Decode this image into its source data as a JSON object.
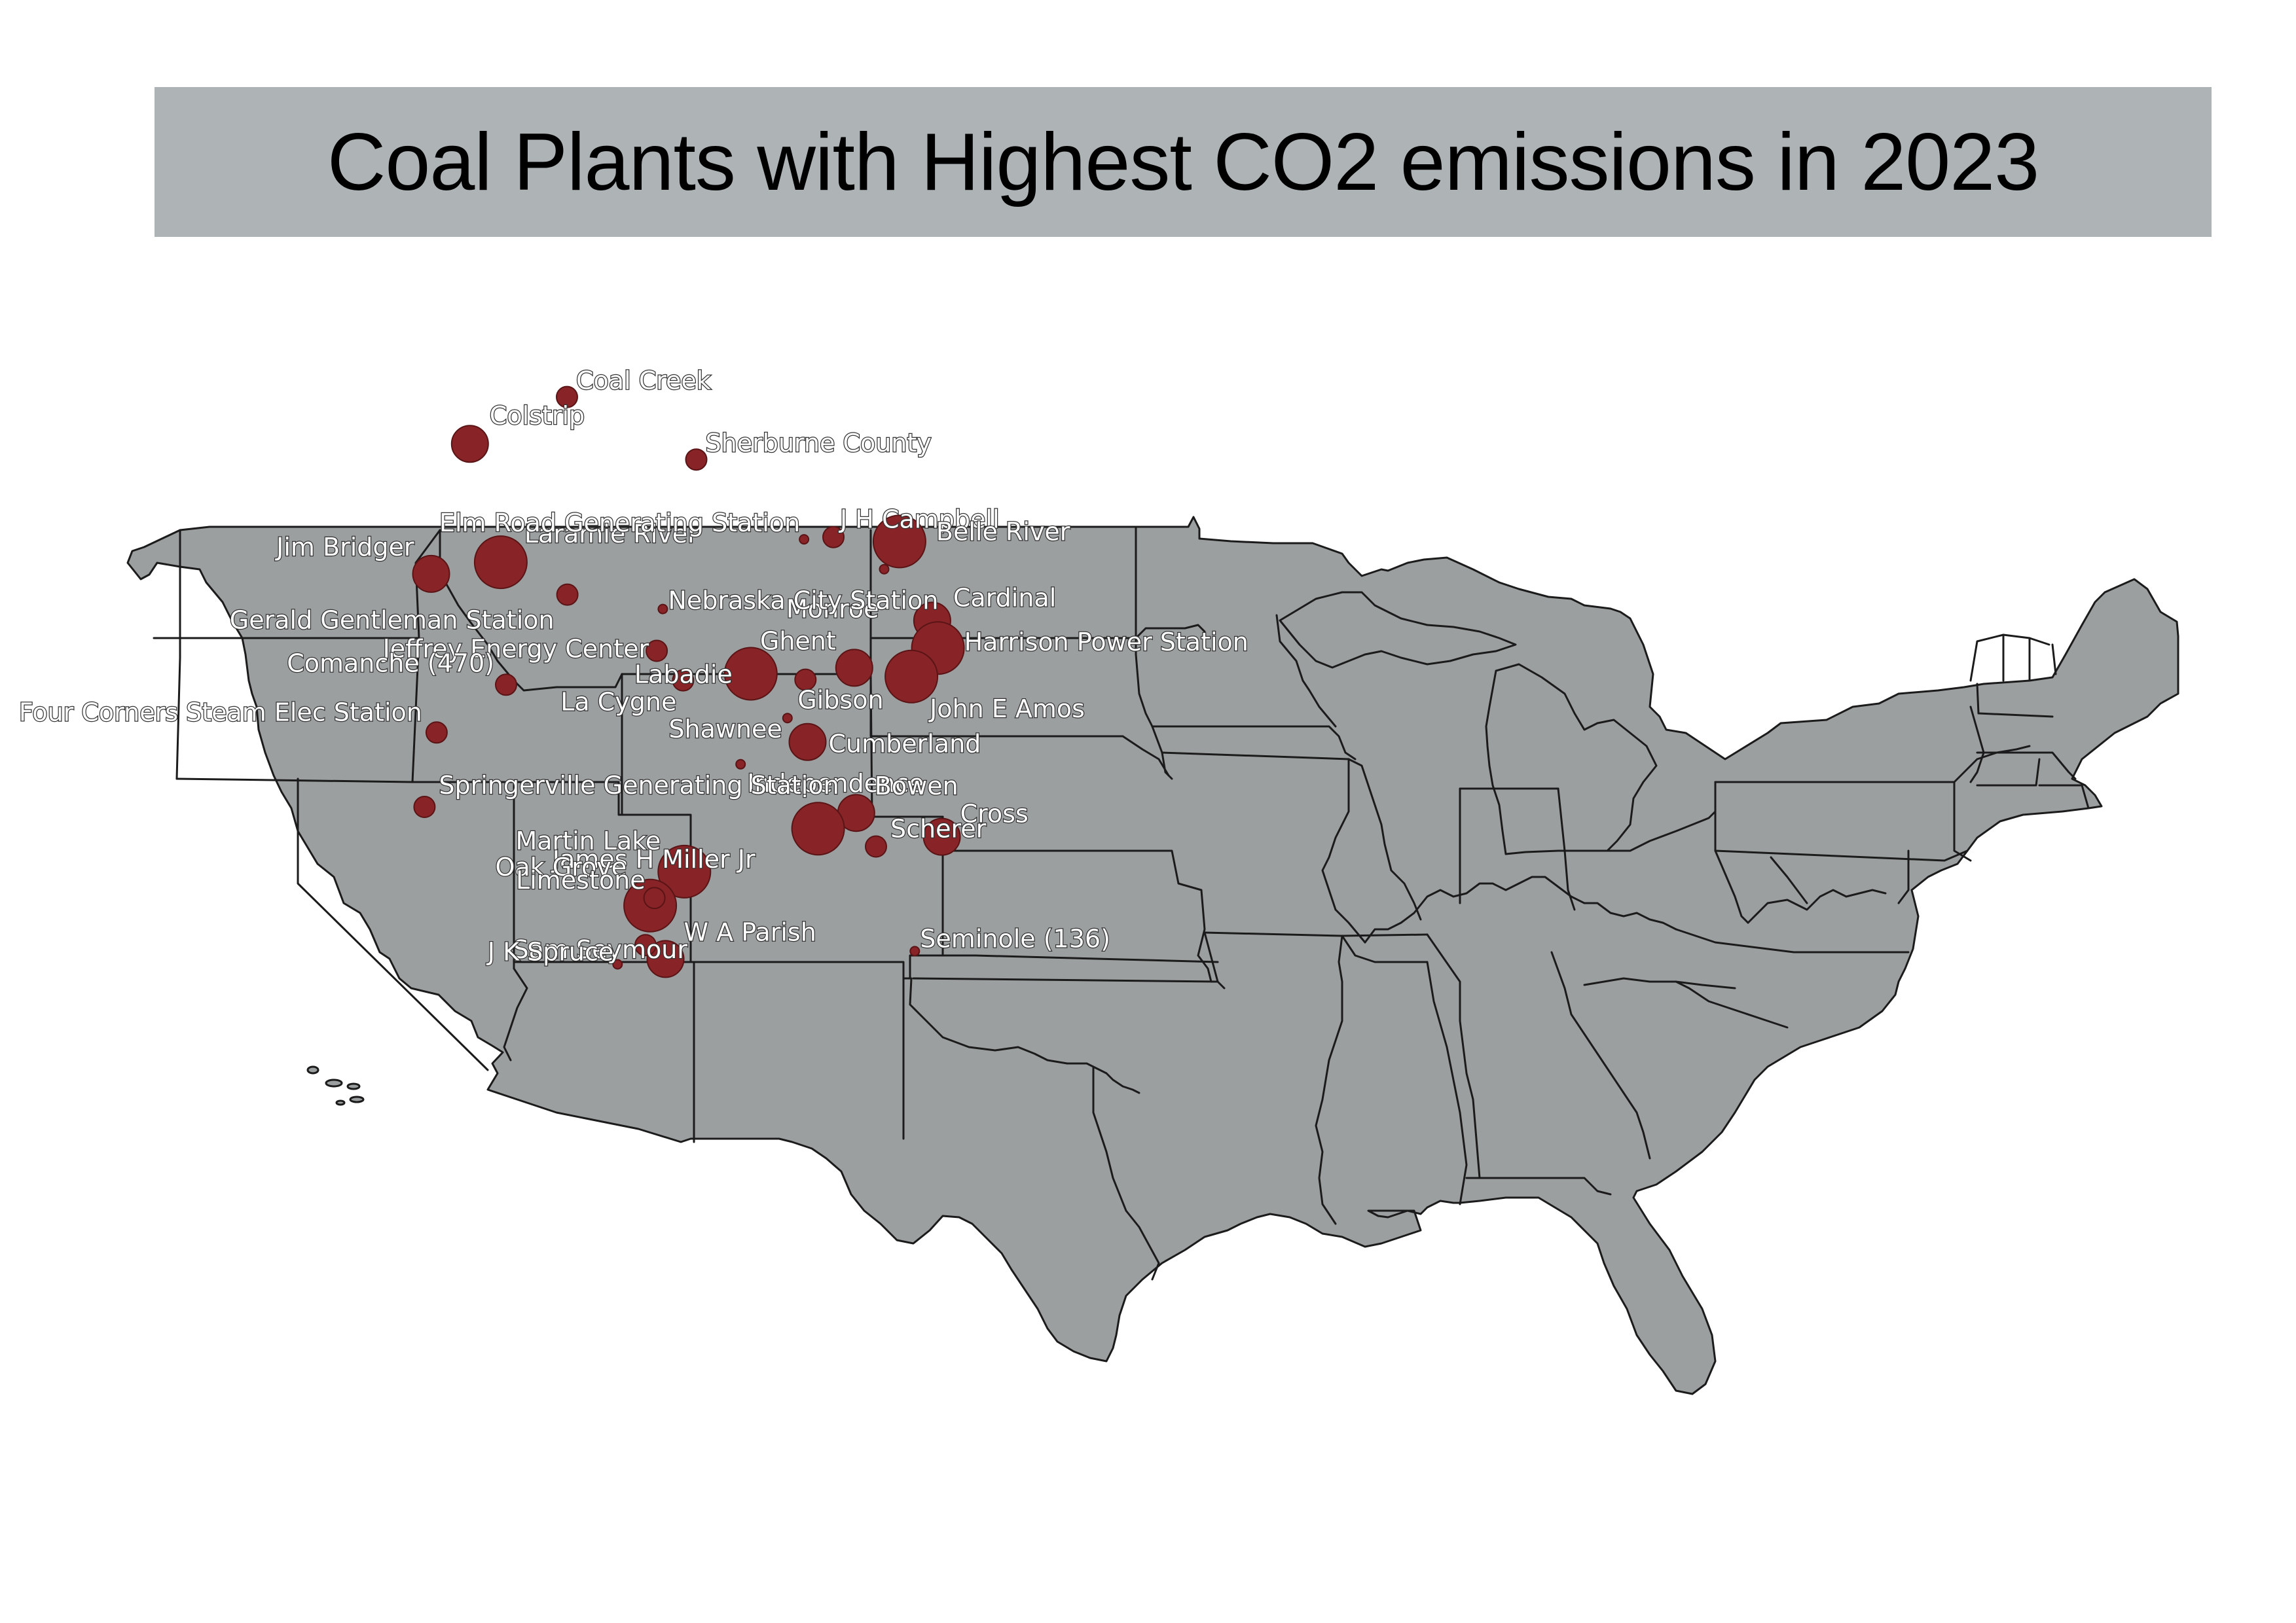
{
  "title": "Coal Plants with Highest CO2 emissions in 2023",
  "colors": {
    "dot": "#882427",
    "land": "#9c9fa0",
    "title_bar": "#aeb3b6"
  },
  "plants": [
    {
      "name": "Coal Creek",
      "lon": -101.16,
      "lat": 47.37,
      "size": "small"
    },
    {
      "name": "Colstrip",
      "lon": -106.61,
      "lat": 45.88,
      "size": "medium"
    },
    {
      "name": "Sherburne County",
      "lon": -93.9,
      "lat": 45.38,
      "size": "small"
    },
    {
      "name": "Laramie River",
      "lon": -104.88,
      "lat": 42.11,
      "size": "large"
    },
    {
      "name": "Jim Bridger",
      "lon": -108.79,
      "lat": 41.74,
      "size": "medium"
    },
    {
      "name": "Elm Road Generating Station",
      "lon": -87.85,
      "lat": 42.84,
      "size": "tiny"
    },
    {
      "name": "J H Campbell",
      "lon": -86.2,
      "lat": 42.91,
      "size": "small"
    },
    {
      "name": "Belle River",
      "lon": -82.49,
      "lat": 42.77,
      "size": "large"
    },
    {
      "name": "Monroe",
      "lon": -83.35,
      "lat": 41.89,
      "size": "tiny"
    },
    {
      "name": "Gerald Gentleman Station",
      "lon": -101.14,
      "lat": 41.08,
      "size": "small"
    },
    {
      "name": "Nebraska City Station",
      "lon": -95.78,
      "lat": 40.62,
      "size": "tiny"
    },
    {
      "name": "Cardinal",
      "lon": -80.65,
      "lat": 40.25,
      "size": "medium"
    },
    {
      "name": "Harrison Power Station",
      "lon": -80.33,
      "lat": 39.38,
      "size": "large"
    },
    {
      "name": "Jeffrey Energy Center",
      "lon": -96.12,
      "lat": 39.29,
      "size": "small"
    },
    {
      "name": "Comanche (470)",
      "lon": -104.58,
      "lat": 38.21,
      "size": "small"
    },
    {
      "name": "Labadie",
      "lon": -90.84,
      "lat": 38.56,
      "size": "large"
    },
    {
      "name": "Ghent",
      "lon": -85.03,
      "lat": 38.75,
      "size": "medium"
    },
    {
      "name": "Gibson",
      "lon": -87.77,
      "lat": 38.37,
      "size": "small"
    },
    {
      "name": "John E Amos",
      "lon": -81.82,
      "lat": 38.47,
      "size": "large"
    },
    {
      "name": "La Cygne",
      "lon": -94.64,
      "lat": 38.35,
      "size": "small"
    },
    {
      "name": "Four Corners Steam Elec Station",
      "lon": -108.48,
      "lat": 36.69,
      "size": "small"
    },
    {
      "name": "Shawnee",
      "lon": -88.78,
      "lat": 37.15,
      "size": "tiny"
    },
    {
      "name": "Cumberland",
      "lon": -87.65,
      "lat": 36.39,
      "size": "medium"
    },
    {
      "name": "Independence",
      "lon": -91.41,
      "lat": 35.68,
      "size": "tiny"
    },
    {
      "name": "Springerville Generating Station",
      "lon": -109.16,
      "lat": 34.32,
      "size": "small"
    },
    {
      "name": "Bowen",
      "lon": -84.92,
      "lat": 34.13,
      "size": "medium"
    },
    {
      "name": "Cross",
      "lon": -80.11,
      "lat": 33.37,
      "size": "medium"
    },
    {
      "name": "Scherer",
      "lon": -83.81,
      "lat": 33.06,
      "size": "small"
    },
    {
      "name": "James H Miller Jr",
      "lon": -87.06,
      "lat": 33.63,
      "size": "large"
    },
    {
      "name": "Martin Lake",
      "lon": -94.57,
      "lat": 32.26,
      "size": "large"
    },
    {
      "name": "Oak Grove",
      "lon": -96.49,
      "lat": 31.18,
      "size": "large"
    },
    {
      "name": "Limestone",
      "lon": -96.25,
      "lat": 31.42,
      "size": "small"
    },
    {
      "name": "W A Parish",
      "lon": -95.63,
      "lat": 29.48,
      "size": "medium"
    },
    {
      "name": "Sam Seymour",
      "lon": -96.75,
      "lat": 29.92,
      "size": "small"
    },
    {
      "name": "J K Spruce",
      "lon": -98.32,
      "lat": 29.31,
      "size": "tiny"
    },
    {
      "name": "Seminole (136)",
      "lon": -81.63,
      "lat": 29.73,
      "size": "tiny"
    }
  ]
}
